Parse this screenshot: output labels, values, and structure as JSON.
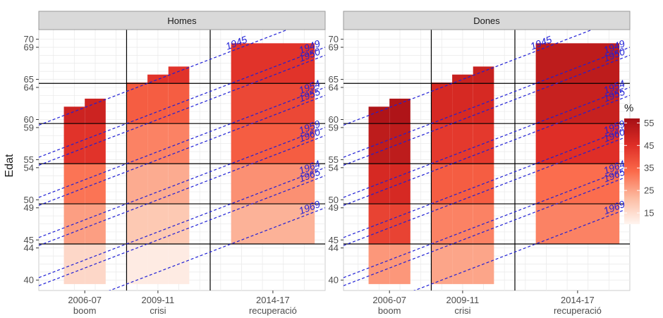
{
  "chart_data": {
    "type": "heatmap",
    "ylabel": "Edat",
    "y_ticks": [
      {
        "label": "40",
        "y": 40
      },
      {
        "label": "44",
        "y": 44
      },
      {
        "label": "45",
        "y": 45
      },
      {
        "label": "49",
        "y": 49
      },
      {
        "label": "50",
        "y": 50
      },
      {
        "label": "54",
        "y": 54
      },
      {
        "label": "55",
        "y": 55
      },
      {
        "label": "59",
        "y": 59
      },
      {
        "label": "60",
        "y": 60
      },
      {
        "label": "64",
        "y": 64
      },
      {
        "label": "65",
        "y": 65
      },
      {
        "label": "69",
        "y": 69
      },
      {
        "label": "70",
        "y": 70
      }
    ],
    "x_ticks": [
      {
        "line1": "2006-07",
        "line2": "boom",
        "x": 2006.5
      },
      {
        "line1": "2009-11",
        "line2": "crisi",
        "x": 2010
      },
      {
        "line1": "2014-17",
        "line2": "recuperació",
        "x": 2015.5
      }
    ],
    "xlim": [
      2004.3,
      2018.0
    ],
    "ylim": [
      38.7,
      71.2
    ],
    "v_lines": [
      2008.5,
      2012.5
    ],
    "h_lines": [
      44.5,
      49.5,
      54.5,
      59.5,
      64.5
    ],
    "legend": {
      "title": "%",
      "range": [
        10,
        57
      ],
      "ticks": [
        15,
        25,
        35,
        45,
        55
      ],
      "colors": [
        "#fff5f0",
        "#fcbba1",
        "#fb6a4a",
        "#de2d26",
        "#a50f15"
      ]
    },
    "cohorts": [
      {
        "label": "1945",
        "birth": 1945,
        "label_x": 2014.3
      },
      {
        "label": "1949",
        "birth": 1949,
        "label_x": 2017.8
      },
      {
        "label": "1950",
        "birth": 1950,
        "label_x": 2017.8
      },
      {
        "label": "1954",
        "birth": 1954,
        "label_x": 2017.8
      },
      {
        "label": "1955",
        "birth": 1955,
        "label_x": 2017.8
      },
      {
        "label": "1959",
        "birth": 1959,
        "label_x": 2017.8
      },
      {
        "label": "1960",
        "birth": 1960,
        "label_x": 2017.8
      },
      {
        "label": "1964",
        "birth": 1964,
        "label_x": 2017.8
      },
      {
        "label": "1965",
        "birth": 1965,
        "label_x": 2017.8
      },
      {
        "label": "1969",
        "birth": 1969,
        "label_x": 2017.8
      }
    ],
    "panels": [
      {
        "name": "Homes",
        "periods": [
          {
            "x0": 2005.5,
            "x1": 2007.5,
            "steps": [
              {
                "x0": 2005.5,
                "x1": 2006.5,
                "top": 61.6
              },
              {
                "x0": 2006.5,
                "x1": 2007.5,
                "top": 62.6
              }
            ],
            "bands": [
              {
                "bottom": 39.5,
                "top": 44.5,
                "value": 16
              },
              {
                "bottom": 44.5,
                "top": 49.5,
                "value": 26
              },
              {
                "bottom": 49.5,
                "top": 54.5,
                "value": 32
              },
              {
                "bottom": 54.5,
                "top": 59.5,
                "value": 44
              },
              {
                "bottom": 59.5,
                "top": 64.5,
                "value": 49
              }
            ]
          },
          {
            "x0": 2008.5,
            "x1": 2011.5,
            "steps": [
              {
                "x0": 2008.5,
                "x1": 2009.5,
                "top": 64.6
              },
              {
                "x0": 2009.5,
                "x1": 2010.5,
                "top": 65.6
              },
              {
                "x0": 2010.5,
                "x1": 2011.5,
                "top": 66.6
              }
            ],
            "bands": [
              {
                "bottom": 39.5,
                "top": 44.5,
                "value": 12
              },
              {
                "bottom": 44.5,
                "top": 49.5,
                "value": 19
              },
              {
                "bottom": 49.5,
                "top": 54.5,
                "value": 24
              },
              {
                "bottom": 54.5,
                "top": 59.5,
                "value": 30
              },
              {
                "bottom": 59.5,
                "top": 64.5,
                "value": 36
              },
              {
                "bottom": 64.5,
                "top": 69.5,
                "value": 44
              }
            ]
          },
          {
            "x0": 2013.5,
            "x1": 2017.5,
            "steps": [
              {
                "x0": 2013.5,
                "x1": 2017.5,
                "top": 69.5
              }
            ],
            "bands": [
              {
                "bottom": 44.5,
                "top": 49.5,
                "value": 23
              },
              {
                "bottom": 49.5,
                "top": 54.5,
                "value": 28
              },
              {
                "bottom": 54.5,
                "top": 59.5,
                "value": 36
              },
              {
                "bottom": 59.5,
                "top": 64.5,
                "value": 40
              },
              {
                "bottom": 64.5,
                "top": 69.5,
                "value": 44
              }
            ]
          }
        ]
      },
      {
        "name": "Dones",
        "periods": [
          {
            "x0": 2005.5,
            "x1": 2007.5,
            "steps": [
              {
                "x0": 2005.5,
                "x1": 2006.5,
                "top": 61.6
              },
              {
                "x0": 2006.5,
                "x1": 2007.5,
                "top": 62.6
              }
            ],
            "bands": [
              {
                "bottom": 39.5,
                "top": 44.5,
                "value": 27
              },
              {
                "bottom": 44.5,
                "top": 49.5,
                "value": 41
              },
              {
                "bottom": 49.5,
                "top": 54.5,
                "value": 47
              },
              {
                "bottom": 54.5,
                "top": 59.5,
                "value": 52
              },
              {
                "bottom": 59.5,
                "top": 64.5,
                "value": 55
              }
            ]
          },
          {
            "x0": 2008.5,
            "x1": 2011.5,
            "steps": [
              {
                "x0": 2008.5,
                "x1": 2009.5,
                "top": 64.6
              },
              {
                "x0": 2009.5,
                "x1": 2010.5,
                "top": 65.6
              },
              {
                "x0": 2010.5,
                "x1": 2011.5,
                "top": 66.6
              }
            ],
            "bands": [
              {
                "bottom": 39.5,
                "top": 44.5,
                "value": 25
              },
              {
                "bottom": 44.5,
                "top": 49.5,
                "value": 30
              },
              {
                "bottom": 49.5,
                "top": 54.5,
                "value": 36
              },
              {
                "bottom": 54.5,
                "top": 59.5,
                "value": 43
              },
              {
                "bottom": 59.5,
                "top": 64.5,
                "value": 47
              },
              {
                "bottom": 64.5,
                "top": 69.5,
                "value": 50
              }
            ]
          },
          {
            "x0": 2013.5,
            "x1": 2017.5,
            "steps": [
              {
                "x0": 2013.5,
                "x1": 2017.5,
                "top": 69.5
              }
            ],
            "bands": [
              {
                "bottom": 44.5,
                "top": 49.5,
                "value": 30
              },
              {
                "bottom": 49.5,
                "top": 54.5,
                "value": 33
              },
              {
                "bottom": 54.5,
                "top": 59.5,
                "value": 45
              },
              {
                "bottom": 59.5,
                "top": 64.5,
                "value": 50
              },
              {
                "bottom": 64.5,
                "top": 69.5,
                "value": 52
              }
            ]
          }
        ]
      }
    ]
  }
}
